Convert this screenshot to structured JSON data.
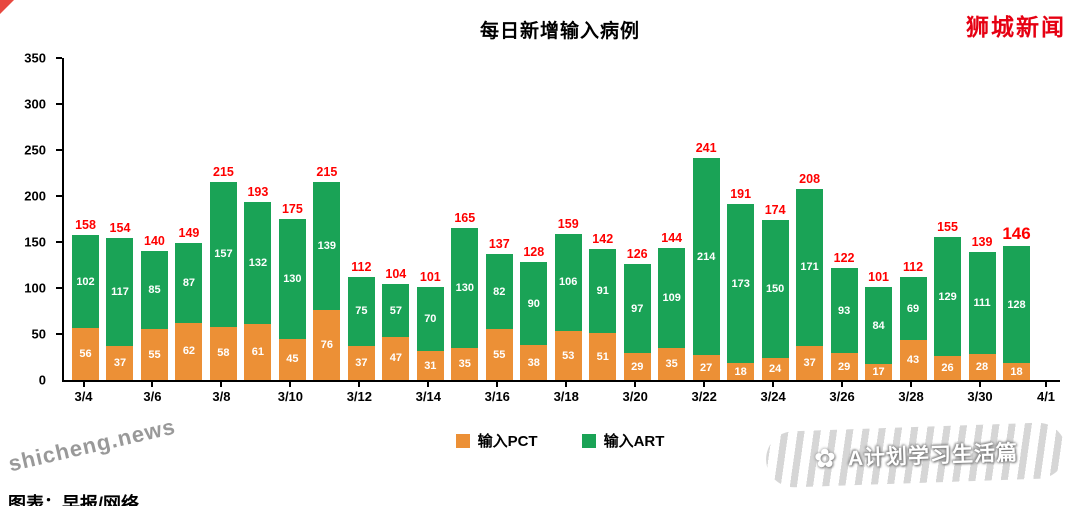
{
  "logo": {
    "text": "狮城新闻",
    "color": "#e60012"
  },
  "caption": "图表：早报/网络",
  "watermarks": {
    "diagonal": "shicheng.news",
    "signature": "A计划学习生活篇",
    "flower_icon": "✿"
  },
  "chart_data": {
    "type": "bar",
    "stacked": true,
    "title": "每日新增输入病例",
    "x": [
      "3/4",
      "3/5",
      "3/6",
      "3/7",
      "3/8",
      "3/9",
      "3/10",
      "3/11",
      "3/12",
      "3/13",
      "3/14",
      "3/15",
      "3/16",
      "3/17",
      "3/18",
      "3/19",
      "3/20",
      "3/21",
      "3/22",
      "3/23",
      "3/24",
      "3/25",
      "3/26",
      "3/27",
      "3/28",
      "3/29",
      "3/30",
      "3/31"
    ],
    "series": [
      {
        "name": "输入PCT",
        "color": "#EC9036",
        "values": [
          56,
          37,
          55,
          62,
          58,
          61,
          45,
          76,
          37,
          47,
          31,
          35,
          55,
          38,
          53,
          51,
          29,
          35,
          27,
          18,
          24,
          37,
          29,
          17,
          43,
          26,
          28,
          18
        ]
      },
      {
        "name": "输入ART",
        "color": "#1AA356",
        "values": [
          102,
          117,
          85,
          87,
          157,
          132,
          130,
          139,
          75,
          57,
          70,
          130,
          82,
          90,
          106,
          91,
          97,
          109,
          214,
          173,
          150,
          171,
          93,
          84,
          69,
          129,
          111,
          128
        ]
      }
    ],
    "totals": [
      158,
      154,
      140,
      149,
      215,
      193,
      175,
      215,
      112,
      104,
      101,
      165,
      137,
      128,
      159,
      142,
      126,
      144,
      241,
      191,
      174,
      208,
      122,
      101,
      112,
      155,
      139,
      146
    ],
    "total_label_color": "#FF0000",
    "x_tick_labels": [
      "3/4",
      "3/6",
      "3/8",
      "3/10",
      "3/12",
      "3/14",
      "3/16",
      "3/18",
      "3/20",
      "3/22",
      "3/24",
      "3/26",
      "3/28",
      "3/30"
    ],
    "x_axis_end_label": "4/1",
    "ylim": [
      0,
      350
    ],
    "y_ticks": [
      0,
      50,
      100,
      150,
      200,
      250,
      300,
      350
    ],
    "grid": false,
    "legend_position": "bottom",
    "highlight_last_total": true
  }
}
